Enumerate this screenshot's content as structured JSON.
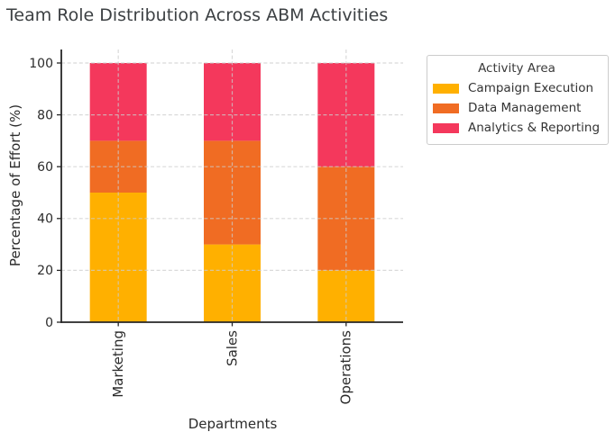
{
  "chart_data": {
    "type": "bar",
    "stacked": true,
    "title": "Team Role Distribution Across ABM Activities",
    "xlabel": "Departments",
    "ylabel": "Percentage of Effort (%)",
    "categories": [
      "Marketing",
      "Sales",
      "Operations"
    ],
    "series": [
      {
        "name": "Campaign Execution",
        "color": "#FFB000",
        "values": [
          50,
          30,
          20
        ]
      },
      {
        "name": "Data Management",
        "color": "#F06C23",
        "values": [
          20,
          40,
          40
        ]
      },
      {
        "name": "Analytics & Reporting",
        "color": "#F4385C",
        "values": [
          30,
          30,
          40
        ]
      }
    ],
    "ylim": [
      0,
      100
    ],
    "yticks": [
      0,
      20,
      40,
      60,
      80,
      100
    ],
    "legend_title": "Activity Area",
    "legend_position": "upper right outside",
    "grid": true
  }
}
